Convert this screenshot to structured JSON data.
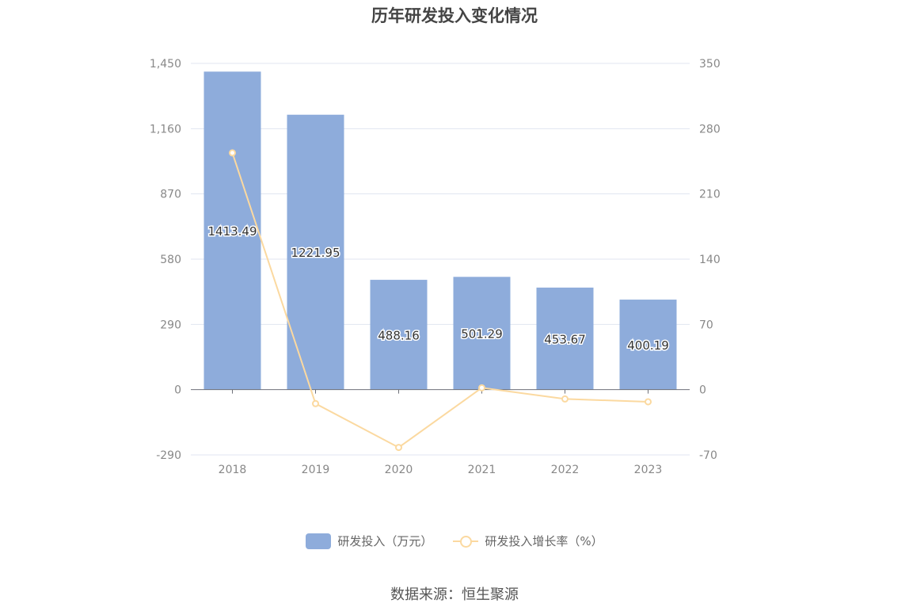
{
  "chart_data": {
    "type": "bar",
    "title": "历年研发投入变化情况",
    "categories": [
      "2018",
      "2019",
      "2020",
      "2021",
      "2022",
      "2023"
    ],
    "series": [
      {
        "name": "研发投入（万元）",
        "type": "bar",
        "axis": "left",
        "values": [
          1413.49,
          1221.95,
          488.16,
          501.29,
          453.67,
          400.19
        ],
        "labels": [
          "1413.49",
          "1221.95",
          "488.16",
          "501.29",
          "453.67",
          "400.19"
        ],
        "color": "#8eacdb"
      },
      {
        "name": "研发投入增长率（%）",
        "type": "line",
        "axis": "right",
        "values": [
          254,
          -15,
          -62,
          2,
          -10,
          -13
        ],
        "color": "#fbd9a0"
      }
    ],
    "y_left": {
      "min": -290,
      "max": 1450,
      "ticks": [
        -290,
        0,
        290,
        580,
        870,
        1160,
        1450
      ],
      "tick_labels": [
        "-290",
        "0",
        "290",
        "580",
        "870",
        "1,160",
        "1,450"
      ]
    },
    "y_right": {
      "min": -70,
      "max": 350,
      "ticks": [
        -70,
        0,
        70,
        140,
        210,
        280,
        350
      ],
      "tick_labels": [
        "-70",
        "0",
        "70",
        "140",
        "210",
        "280",
        "350"
      ]
    },
    "grid": true,
    "legend_position": "bottom"
  },
  "source": "数据来源：恒生聚源"
}
